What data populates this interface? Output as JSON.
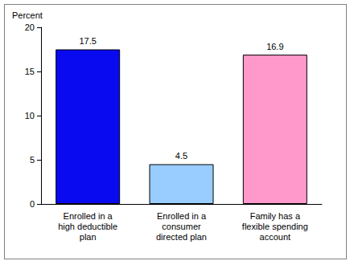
{
  "chart_data": {
    "type": "bar",
    "ylabel": "Percent",
    "categories": [
      "Enrolled in a\nhigh deductible\nplan",
      "Enrolled in a\nconsumer\ndirected plan",
      "Family has a\nflexible spending\naccount"
    ],
    "values": [
      17.5,
      4.5,
      16.9
    ],
    "colors": [
      "#0a0af0",
      "#99ccff",
      "#ff99cc"
    ],
    "ylim": [
      0,
      20
    ],
    "yticks": [
      0,
      5,
      10,
      15,
      20
    ],
    "grid": false,
    "data_labels": true
  }
}
